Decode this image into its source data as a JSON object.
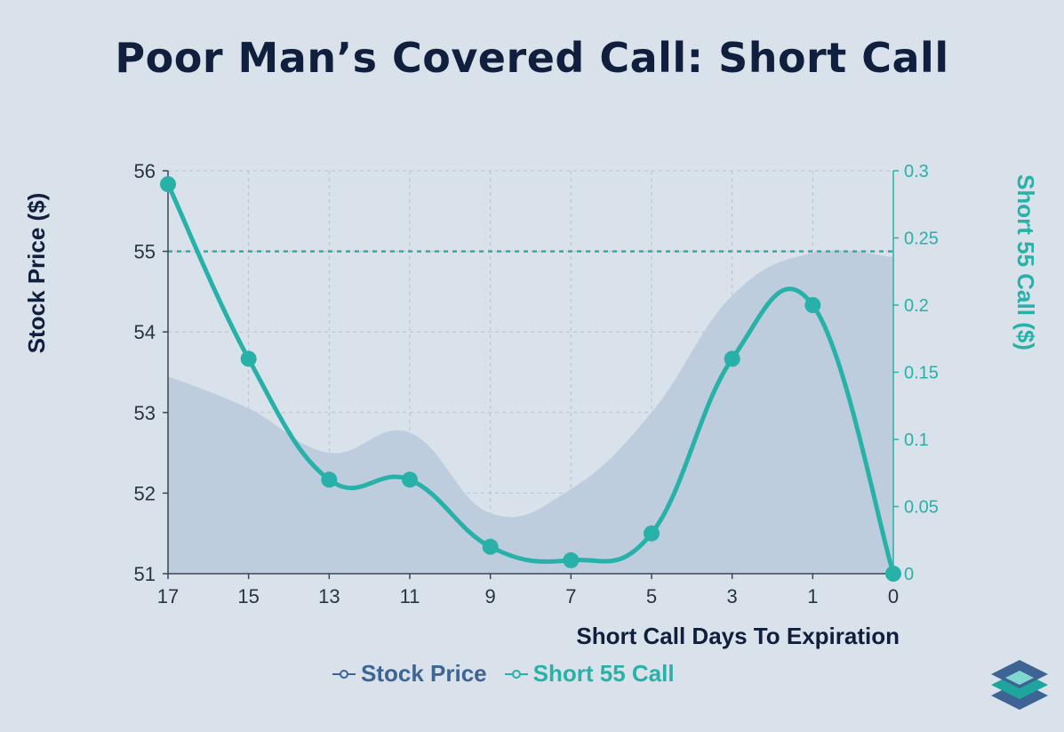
{
  "title": "Poor Man’s Covered Call: Short Call",
  "colors": {
    "background": "#d9e1ea",
    "stock_area": "#bccbdc",
    "call_line": "#28b1a8",
    "title": "#0f1f3d",
    "legend_stock": "#3e6496"
  },
  "chart_data": {
    "type": "line",
    "title": "Poor Man’s Covered Call: Short Call",
    "xlabel": "Short Call Days To Expiration",
    "ylabel_left": "Stock Price ($)",
    "ylabel_right": "Short 55 Call  ($)",
    "x_ticks": [
      "17",
      "15",
      "13",
      "11",
      "9",
      "7",
      "5",
      "3",
      "1",
      "0"
    ],
    "y_left_ticks": [
      56,
      55,
      54,
      53,
      52,
      51
    ],
    "y_right_ticks": [
      "0.3",
      "0.25",
      "0.2",
      "0.15",
      "0.1",
      "0.05",
      "0"
    ],
    "ylim_left": [
      51,
      56
    ],
    "ylim_right": [
      0,
      0.3
    ],
    "reference_line": {
      "axis": "left",
      "value": 55,
      "style": "dashed"
    },
    "grid": true,
    "legend_position": "bottom-center",
    "series": [
      {
        "name": "Stock Price",
        "type": "area",
        "axis": "left",
        "x": [
          "17",
          "15",
          "13",
          "11",
          "9",
          "7",
          "5",
          "3",
          "1",
          "0"
        ],
        "values": [
          53.45,
          53.05,
          52.5,
          52.75,
          51.75,
          52.05,
          53.0,
          54.45,
          54.98,
          54.93
        ]
      },
      {
        "name": "Short 55 Call",
        "type": "line",
        "axis": "right",
        "x": [
          "17",
          "15",
          "13",
          "11",
          "9",
          "7",
          "5",
          "3",
          "1",
          "0"
        ],
        "values": [
          0.29,
          0.16,
          0.07,
          0.07,
          0.02,
          0.01,
          0.03,
          0.16,
          0.2,
          0.0
        ]
      }
    ]
  },
  "legend": {
    "stock_label": "Stock Price",
    "call_label": "Short 55 Call"
  },
  "logo_icon": "layers-logo-icon"
}
